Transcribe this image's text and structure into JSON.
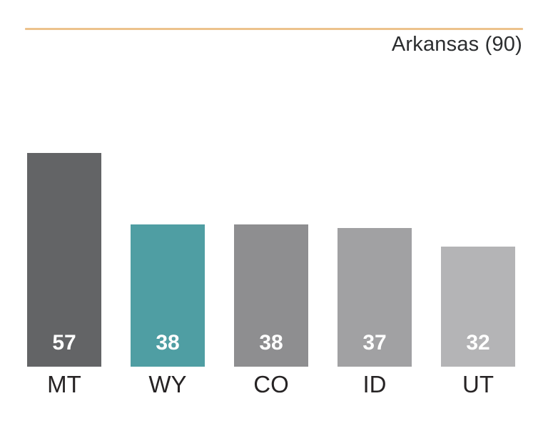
{
  "title": "Arkansas (90)",
  "colors": {
    "accent_line": "#ECC28C",
    "title_text": "#2B2D2F",
    "category_text": "#262324",
    "value_text": "#FFFFFF"
  },
  "chart_data": {
    "type": "bar",
    "title": "Arkansas (90)",
    "categories": [
      "MT",
      "WY",
      "CO",
      "ID",
      "UT"
    ],
    "values": [
      57,
      38,
      38,
      37,
      32
    ],
    "value_labels": [
      "57",
      "38",
      "38",
      "37",
      "32"
    ],
    "bar_colors": [
      "#636466",
      "#4F9EA3",
      "#8E8E90",
      "#A1A1A3",
      "#B4B4B6"
    ],
    "highlighted_category": "WY",
    "highlight_color": "#4F9EA3",
    "xlabel": "",
    "ylabel": "",
    "ylim": [
      0,
      57
    ],
    "grid": "off",
    "legend": "none",
    "value_label_position": "inside-bottom",
    "category_label_position": "below-bar"
  }
}
